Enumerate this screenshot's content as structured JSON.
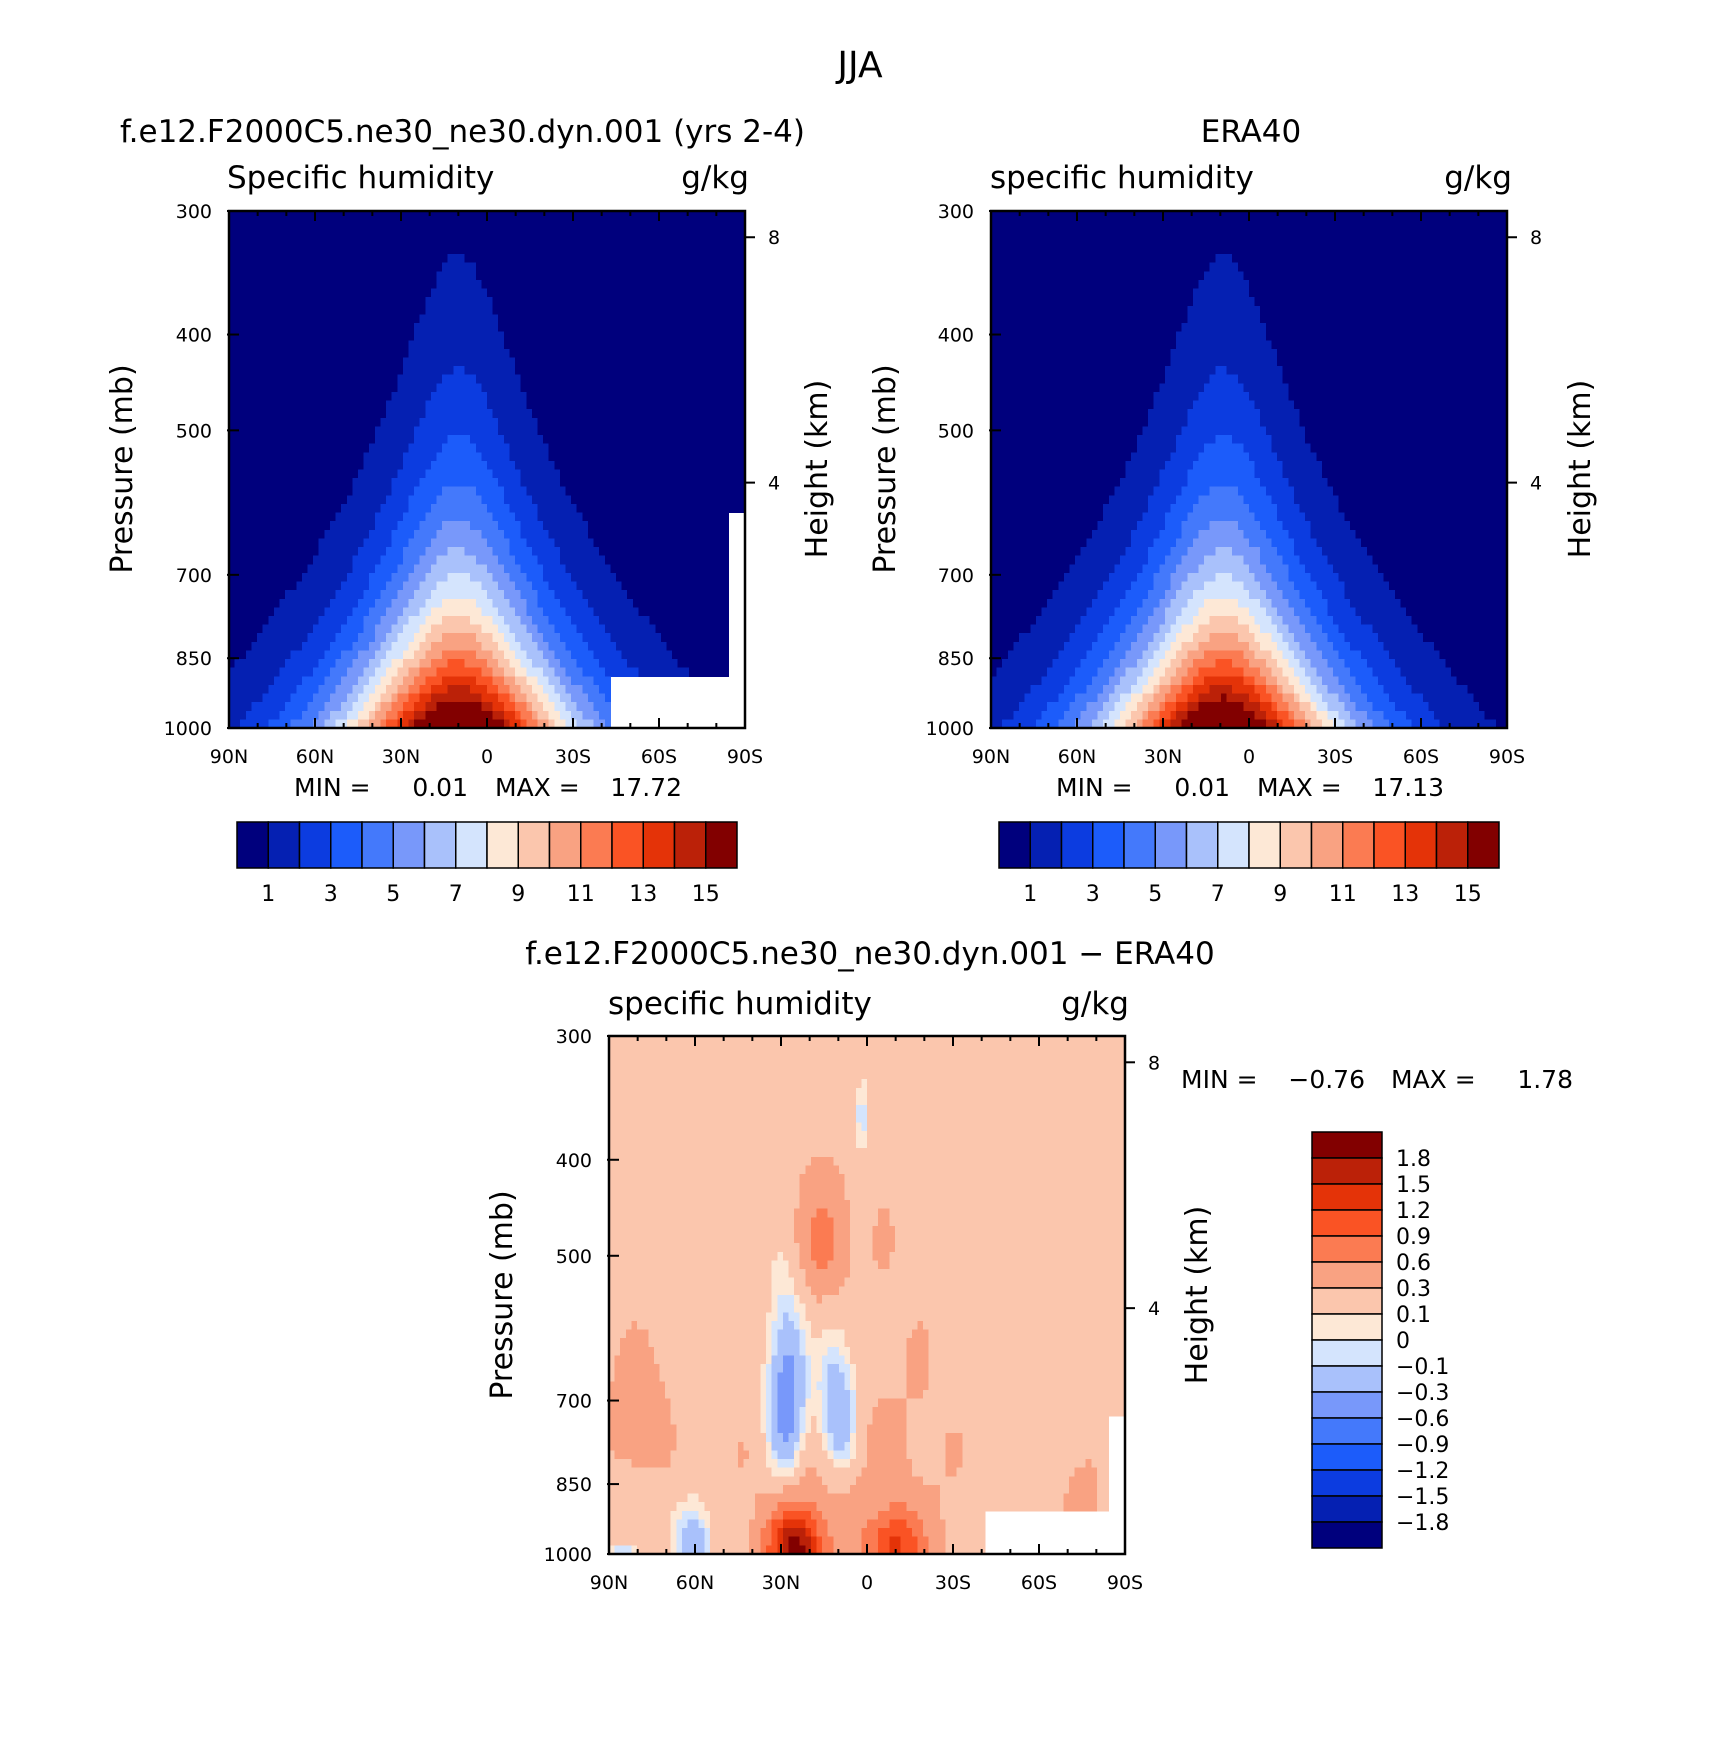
{
  "figure": {
    "title": "JJA"
  },
  "colors": {
    "sequential": [
      "#00007d",
      "#0520b2",
      "#0c3ce0",
      "#1c5cfa",
      "#4479fb",
      "#7898fa",
      "#a9c1fb",
      "#d4e4fd",
      "#fde8d6",
      "#fbc6ad",
      "#f9a282",
      "#fb7b52",
      "#fa5324",
      "#e43308",
      "#bb2108",
      "#820000"
    ],
    "difference": [
      "#00007d",
      "#0520b2",
      "#0c3ce0",
      "#1c5cfa",
      "#4479fb",
      "#7898fa",
      "#a9c1fb",
      "#d4e4fd",
      "#fde8d6",
      "#fbc6ad",
      "#f9a282",
      "#fb7b52",
      "#fa5324",
      "#e43308",
      "#bb2108",
      "#820000"
    ]
  },
  "chart_data": [
    {
      "type": "heatmap",
      "panel": "model",
      "title": "f.e12.F2000C5.ne30_ne30.dyn.001 (yrs 2-4)",
      "left_label": "Specific humidity",
      "units": "g/kg",
      "ylabel": "Pressure (mb)",
      "right_ylabel": "Height (km)",
      "x_ticks": [
        "90N",
        "60N",
        "30N",
        "0",
        "30S",
        "60S",
        "90S"
      ],
      "y_ticks": [
        300,
        400,
        500,
        700,
        850,
        1000
      ],
      "right_ticks": [
        8,
        4
      ],
      "xlim": [
        90,
        -90
      ],
      "ylim": [
        1000,
        300
      ],
      "y_scale": "log",
      "min_label": "MIN =",
      "min_value": "0.01",
      "max_label": "MAX =",
      "max_value": "17.72",
      "contour_levels": [
        1,
        2,
        3,
        4,
        5,
        6,
        7,
        8,
        9,
        10,
        11,
        12,
        13,
        14,
        15
      ],
      "colorbar_labels": [
        "1",
        "3",
        "5",
        "7",
        "9",
        "11",
        "13",
        "15"
      ]
    },
    {
      "type": "heatmap",
      "panel": "obs",
      "title": "ERA40",
      "left_label": "specific humidity",
      "units": "g/kg",
      "ylabel": "Pressure (mb)",
      "right_ylabel": "Height (km)",
      "x_ticks": [
        "90N",
        "60N",
        "30N",
        "0",
        "30S",
        "60S",
        "90S"
      ],
      "y_ticks": [
        300,
        400,
        500,
        700,
        850,
        1000
      ],
      "right_ticks": [
        8,
        4
      ],
      "xlim": [
        90,
        -90
      ],
      "ylim": [
        1000,
        300
      ],
      "y_scale": "log",
      "min_label": "MIN =",
      "min_value": "0.01",
      "max_label": "MAX =",
      "max_value": "17.13",
      "contour_levels": [
        1,
        2,
        3,
        4,
        5,
        6,
        7,
        8,
        9,
        10,
        11,
        12,
        13,
        14,
        15
      ],
      "colorbar_labels": [
        "1",
        "3",
        "5",
        "7",
        "9",
        "11",
        "13",
        "15"
      ]
    },
    {
      "type": "heatmap",
      "panel": "difference",
      "title": "f.e12.F2000C5.ne30_ne30.dyn.001 − ERA40",
      "left_label": "specific humidity",
      "units": "g/kg",
      "ylabel": "Pressure (mb)",
      "right_ylabel": "Height (km)",
      "x_ticks": [
        "90N",
        "60N",
        "30N",
        "0",
        "30S",
        "60S",
        "90S"
      ],
      "y_ticks": [
        300,
        400,
        500,
        700,
        850,
        1000
      ],
      "right_ticks": [
        8,
        4
      ],
      "xlim": [
        90,
        -90
      ],
      "ylim": [
        1000,
        300
      ],
      "y_scale": "log",
      "min_label": "MIN =",
      "min_value": "−0.76",
      "max_label": "MAX =",
      "max_value": "1.78",
      "contour_levels": [
        -1.8,
        -1.5,
        -1.2,
        -0.9,
        -0.6,
        -0.3,
        -0.1,
        0,
        0.1,
        0.3,
        0.6,
        0.9,
        1.2,
        1.5,
        1.8
      ],
      "colorbar_labels": [
        "1.8",
        "1.5",
        "1.2",
        "0.9",
        "0.6",
        "0.3",
        "0.1",
        "0",
        "−0.1",
        "−0.3",
        "−0.6",
        "−0.9",
        "−1.2",
        "−1.5",
        "−1.8"
      ]
    }
  ]
}
